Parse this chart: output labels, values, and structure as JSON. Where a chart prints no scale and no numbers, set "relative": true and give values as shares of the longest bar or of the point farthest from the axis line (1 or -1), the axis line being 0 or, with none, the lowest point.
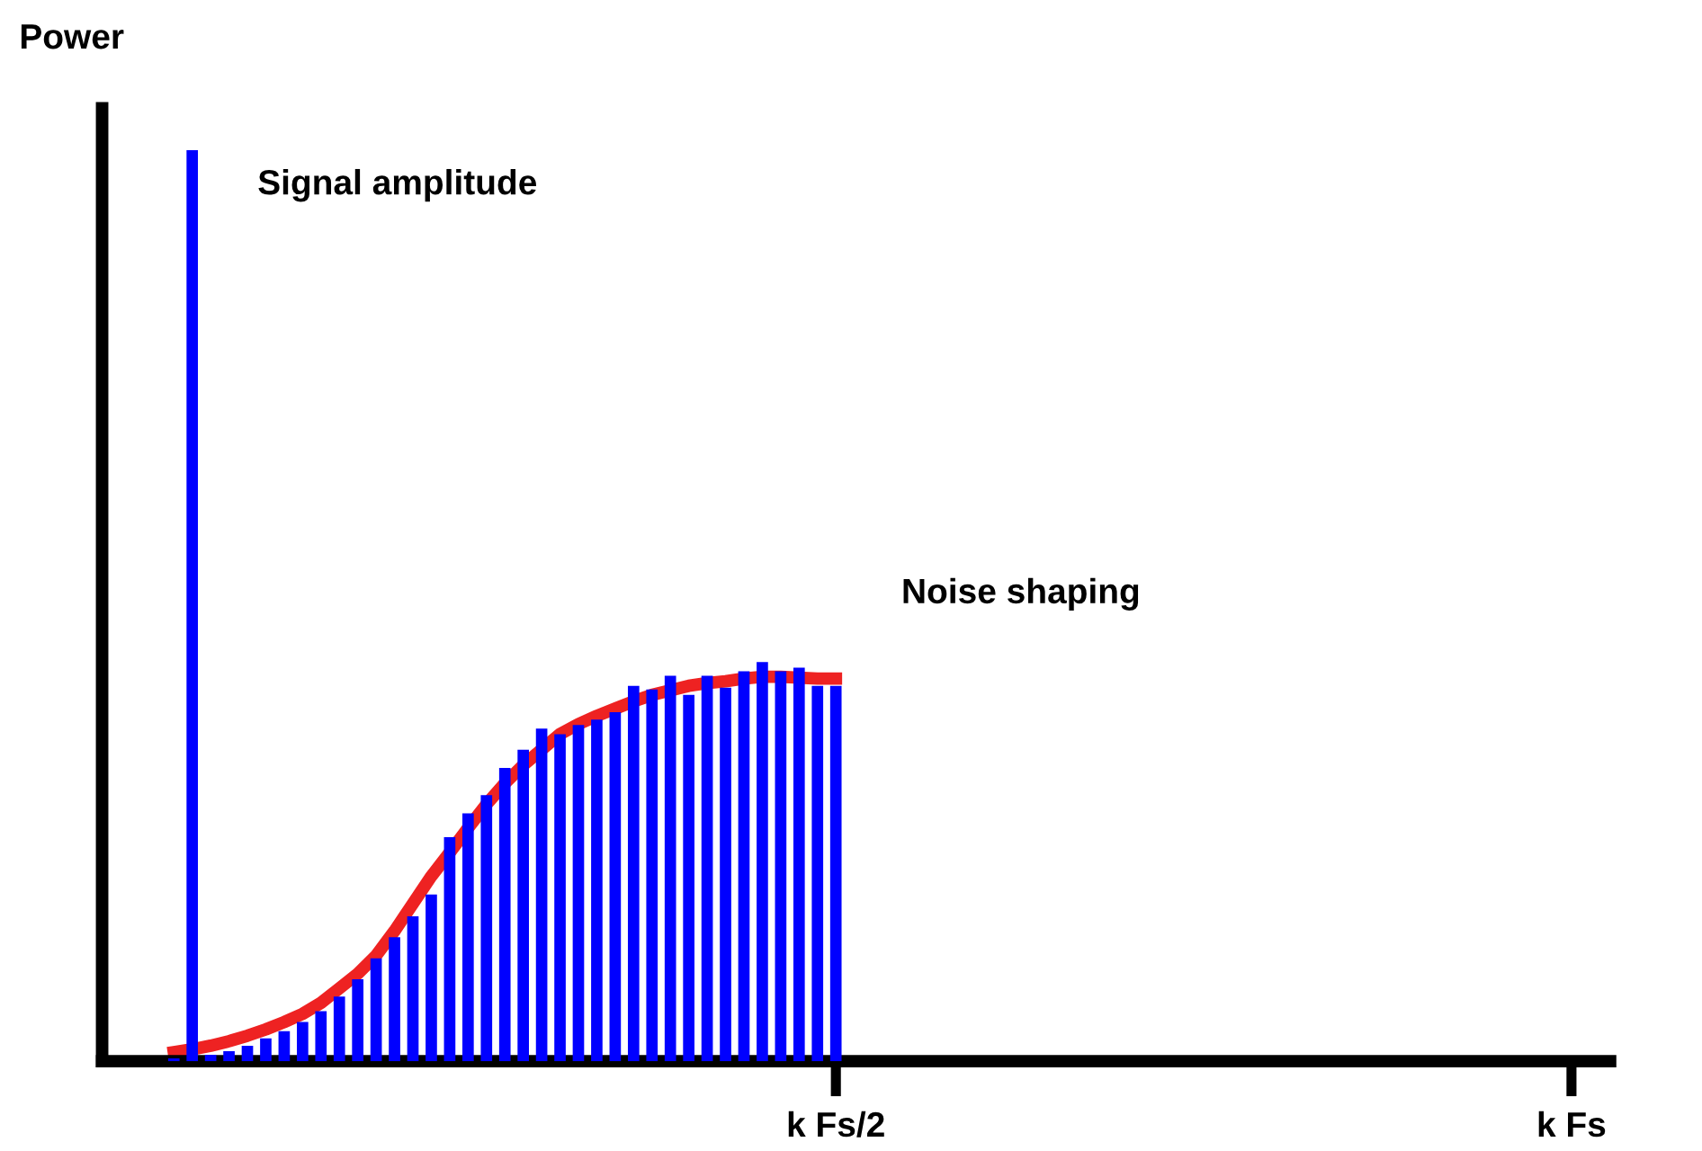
{
  "chart_data": {
    "type": "bar",
    "relative": true,
    "ylabel": "Power",
    "legend": false,
    "grid": false,
    "categories": [
      null,
      null,
      null,
      null,
      null,
      null,
      null,
      null,
      null,
      null,
      null,
      null,
      null,
      null,
      null,
      null,
      null,
      null,
      null,
      null,
      null,
      null,
      null,
      null,
      null,
      null,
      null,
      null,
      null,
      null,
      null,
      null,
      null,
      null,
      null,
      null,
      "k Fs/2",
      null,
      null,
      null,
      null,
      null,
      null,
      null,
      null,
      null,
      null,
      null,
      null,
      null,
      null,
      null,
      null,
      null,
      null,
      null,
      null,
      null,
      null,
      null,
      null,
      null,
      null,
      null,
      null,
      null,
      null,
      null,
      null,
      null,
      null,
      null,
      null,
      null,
      null,
      null,
      "k Fs"
    ],
    "annotations": [
      "Signal amplitude",
      "Noise shaping"
    ],
    "series": [
      {
        "color": "#0000ff",
        "values": [
          0.003,
          1,
          0.007,
          0.011,
          0.017,
          0.025,
          0.033,
          0.043,
          0.055,
          0.071,
          0.09,
          0.113,
          0.136,
          0.159,
          0.183,
          0.246,
          0.272,
          0.292,
          0.322,
          0.342,
          0.365,
          0.359,
          0.369,
          0.375,
          0.383,
          0.412,
          0.408,
          0.423,
          0.402,
          0.423,
          0.41,
          0.428,
          0.438,
          0.428,
          0.432,
          0.412,
          0.412,
          null,
          null,
          null,
          null,
          null,
          null,
          null,
          null,
          null,
          null,
          null,
          null,
          null,
          null,
          null,
          null,
          null,
          null,
          null,
          null,
          null,
          null,
          null,
          null,
          null,
          null,
          null,
          null,
          null,
          null,
          null,
          null,
          null,
          null,
          null,
          null,
          null,
          null,
          null,
          null
        ]
      },
      {
        "type": "line",
        "color": "#ee2222",
        "values": [
          0.01,
          0.013,
          0.017,
          0.022,
          0.028,
          0.035,
          0.043,
          0.052,
          0.064,
          0.08,
          0.096,
          0.116,
          0.143,
          0.173,
          0.203,
          0.229,
          0.256,
          0.282,
          0.305,
          0.325,
          0.342,
          0.359,
          0.37,
          0.379,
          0.387,
          0.395,
          0.402,
          0.407,
          0.412,
          0.415,
          0.417,
          0.42,
          0.422,
          0.422,
          0.421,
          0.42,
          0.42,
          null,
          null,
          null,
          null,
          null,
          null,
          null,
          null,
          null,
          null,
          null,
          null,
          null,
          null,
          null,
          null,
          null,
          null,
          null,
          null,
          null,
          null,
          null,
          null,
          null,
          null,
          null,
          null,
          null,
          null,
          null,
          null,
          null,
          null,
          null,
          null,
          null,
          null,
          null,
          null
        ]
      }
    ]
  }
}
